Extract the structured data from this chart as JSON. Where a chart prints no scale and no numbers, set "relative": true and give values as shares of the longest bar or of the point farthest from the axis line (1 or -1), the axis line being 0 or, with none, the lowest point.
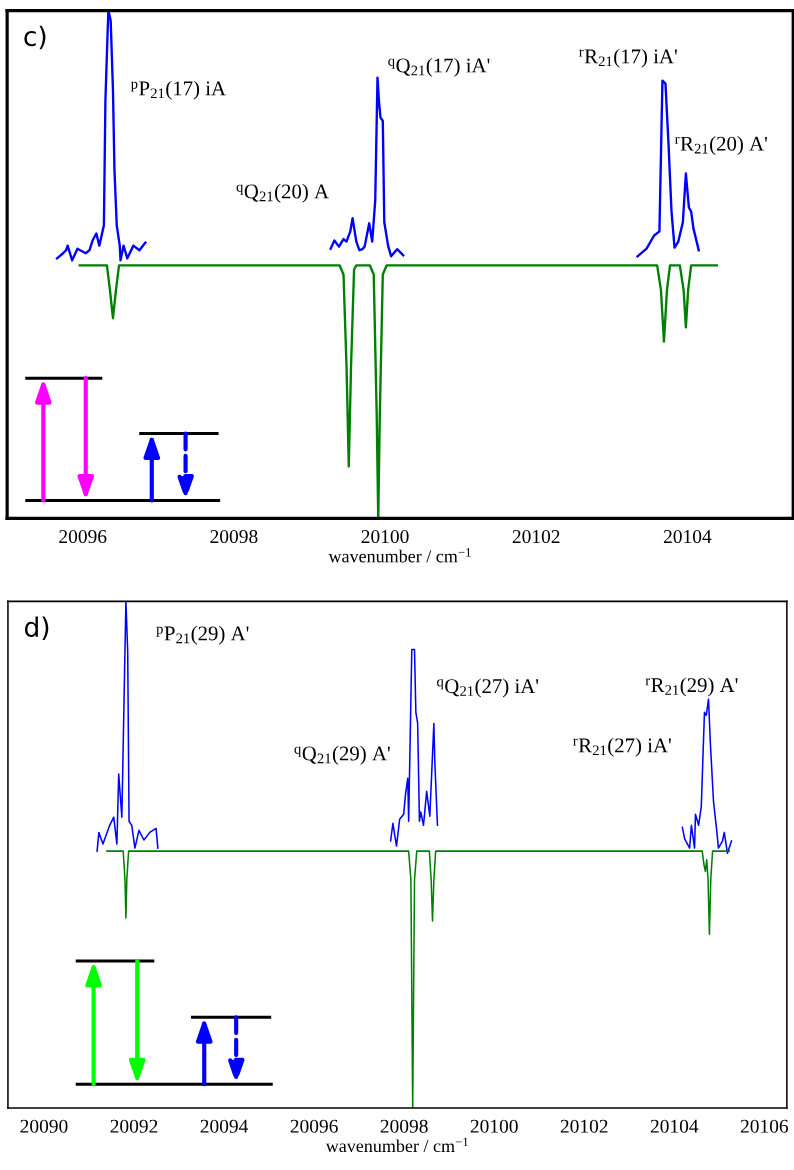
{
  "chart_data": [
    {
      "type": "line",
      "title": "c)",
      "xlabel": "wavenumber / cm$^{−1}$",
      "xlim": [
        20095,
        20105.4
      ],
      "xticks": [
        20096,
        20098,
        20100,
        20102,
        20104
      ],
      "relative": true,
      "tick_labels": "x",
      "annotations": [
        "$^{p}$P$_{21}$(17) iA",
        "$^{q}$Q$_{21}$(20) A",
        "$^{q}$Q$_{21}$(17) iA'",
        "$^{r}$R$_{21}$(17) iA'",
        "$^{r}$R$_{21}$(20) A'"
      ],
      "series": [
        {
          "color": "#0000ff",
          "x": [
            20095.66,
            20095.74,
            20095.78,
            20095.8,
            20095.86,
            20095.93,
            20096.04,
            20096.09,
            20096.13,
            20096.18,
            20096.22,
            20096.28,
            20096.3,
            20096.33,
            20096.34,
            20096.37,
            20096.4,
            20096.42,
            20096.45,
            20096.49,
            20096.5,
            20096.54,
            20096.59,
            20096.67,
            20096.75,
            20096.83,
            20098.0,
            20099.28,
            20099.33,
            20099.39,
            20099.45,
            20099.49,
            20099.54,
            20099.57,
            20099.62,
            20099.66,
            20099.7,
            20099.73,
            20099.79,
            20099.83,
            20099.87,
            20099.9,
            20099.92,
            20099.94,
            20099.97,
            20099.99,
            20100.04,
            20100.08,
            20100.16,
            20100.24,
            20102.0,
            20103.34,
            20103.46,
            20103.56,
            20103.63,
            20103.67,
            20103.71,
            20103.75,
            20103.79,
            20103.83,
            20103.88,
            20103.94,
            20103.98,
            20104.02,
            20104.05,
            20104.08,
            20104.15
          ],
          "values": [
            0.512,
            0.522,
            0.528,
            0.537,
            0.508,
            0.531,
            0.522,
            0.528,
            0.547,
            0.561,
            0.537,
            0.577,
            0.823,
            0.961,
            1.0,
            0.98,
            0.843,
            0.685,
            0.577,
            0.537,
            0.508,
            0.537,
            0.512,
            0.537,
            0.528,
            0.543,
            null,
            0.531,
            0.547,
            0.535,
            0.55,
            0.545,
            0.565,
            0.591,
            0.545,
            0.528,
            0.53,
            0.535,
            0.581,
            0.545,
            0.626,
            0.868,
            0.82,
            0.789,
            0.783,
            0.583,
            0.537,
            0.516,
            0.53,
            0.518,
            null,
            0.516,
            0.531,
            0.557,
            0.565,
            0.862,
            0.856,
            0.738,
            0.604,
            0.533,
            0.545,
            0.583,
            0.679,
            0.612,
            0.604,
            0.571,
            0.528
          ]
        },
        {
          "color": "#008000",
          "x": [
            20095.96,
            20096.32,
            20096.36,
            20096.4,
            20096.44,
            20096.48,
            20099.4,
            20099.45,
            20099.49,
            20099.52,
            20099.55,
            20099.59,
            20099.62,
            20099.8,
            20099.85,
            20099.89,
            20099.91,
            20099.93,
            20099.97,
            20100.02,
            20103.6,
            20103.65,
            20103.69,
            20103.73,
            20103.77,
            20103.9,
            20103.95,
            20103.98,
            20104.01,
            20104.05,
            20104.39
          ],
          "values": [
            0.498,
            0.498,
            0.45,
            0.394,
            0.45,
            0.498,
            0.498,
            0.48,
            0.3,
            0.102,
            0.3,
            0.49,
            0.498,
            0.498,
            0.48,
            0.2,
            0,
            0.2,
            0.48,
            0.498,
            0.498,
            0.45,
            0.348,
            0.45,
            0.498,
            0.498,
            0.45,
            0.376,
            0.45,
            0.498,
            0.498
          ]
        }
      ]
    },
    {
      "type": "line",
      "title": "d)",
      "xlabel": "wavenumber / cm$^{−1}$",
      "xlim": [
        20089.2,
        20106.5
      ],
      "xticks": [
        20090,
        20092,
        20094,
        20096,
        20098,
        20100,
        20102,
        20104,
        20106
      ],
      "relative": true,
      "tick_labels": "x",
      "annotations": [
        "$^{p}$P$_{21}$(29) A'",
        "$^{q}$Q$_{21}$(29) A'",
        "$^{q}$Q$_{21}$(27) iA'",
        "$^{r}$R$_{21}$(27) iA'",
        "$^{r}$R$_{21}$(29) A'"
      ],
      "series": [
        {
          "color": "#0000ff",
          "x": [
            20091.18,
            20091.22,
            20091.31,
            20091.46,
            20091.55,
            20091.62,
            20091.66,
            20091.73,
            20091.78,
            20091.82,
            20091.86,
            20091.89,
            20091.95,
            20092.02,
            20092.11,
            20092.22,
            20092.35,
            20092.49,
            20092.53,
            20095.0,
            20097.7,
            20097.75,
            20097.83,
            20097.9,
            20097.99,
            20098.03,
            20098.08,
            20098.1,
            20098.17,
            20098.23,
            20098.26,
            20098.3,
            20098.34,
            20098.37,
            20098.43,
            20098.5,
            20098.57,
            20098.66,
            20098.68,
            20098.74,
            20101.5,
            20104.18,
            20104.23,
            20104.34,
            20104.38,
            20104.45,
            20104.47,
            20104.54,
            20104.6,
            20104.67,
            20104.71,
            20104.76,
            20104.8,
            20104.87,
            20104.94,
            20104.98,
            20105.07,
            20105.11,
            20105.18,
            20105.27
          ],
          "values": [
            0.507,
            0.544,
            0.521,
            0.558,
            0.574,
            0.521,
            0.659,
            0.574,
            0.811,
            1.0,
            0.901,
            0.566,
            0.558,
            0.513,
            0.548,
            0.529,
            0.544,
            0.552,
            0.513,
            null,
            0.527,
            0.562,
            0.517,
            0.57,
            0.58,
            0.619,
            0.651,
            0.566,
            0.905,
            0.905,
            0.781,
            0.759,
            0.566,
            0.584,
            0.558,
            0.625,
            0.576,
            0.759,
            0.686,
            0.558,
            null,
            0.554,
            0.531,
            0.513,
            0.558,
            0.513,
            0.58,
            0.558,
            0.596,
            0.781,
            0.775,
            0.807,
            0.722,
            0.606,
            0.55,
            0.513,
            0.527,
            0.544,
            0.503,
            0.527
          ]
        },
        {
          "color": "#008000",
          "x": [
            20091.4,
            20091.76,
            20091.8,
            20091.82,
            20091.84,
            20091.88,
            20098.1,
            20098.15,
            20098.19,
            20098.23,
            20098.28,
            20098.56,
            20098.6,
            20098.63,
            20098.66,
            20098.7,
            20104.62,
            20104.66,
            20104.69,
            20104.72,
            20104.75,
            20104.78,
            20104.81,
            20104.85,
            20105.22
          ],
          "values": [
            0.507,
            0.507,
            0.45,
            0.375,
            0.45,
            0.507,
            0.507,
            0.45,
            0,
            0.45,
            0.507,
            0.507,
            0.45,
            0.369,
            0.45,
            0.507,
            0.507,
            0.48,
            0.467,
            0.49,
            0.45,
            0.343,
            0.45,
            0.507,
            0.507
          ]
        }
      ]
    }
  ]
}
